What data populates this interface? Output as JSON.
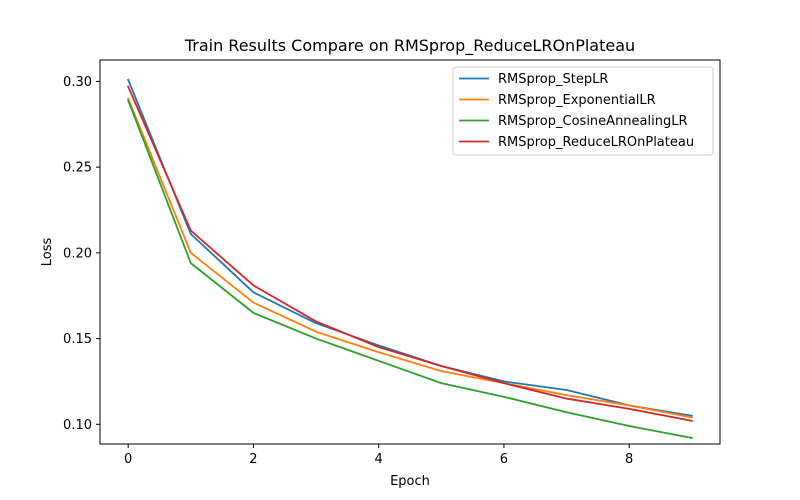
{
  "chart_data": {
    "type": "line",
    "title": "Train Results Compare on RMSprop_ReduceLROnPlateau",
    "xlabel": "Epoch",
    "ylabel": "Loss",
    "x": [
      0,
      1,
      2,
      3,
      4,
      5,
      6,
      7,
      8,
      9
    ],
    "xlim": [
      -0.45,
      9.45
    ],
    "ylim": [
      0.0885,
      0.3125
    ],
    "xticks": [
      0,
      2,
      4,
      6,
      8
    ],
    "xtick_labels": [
      "0",
      "2",
      "4",
      "6",
      "8"
    ],
    "yticks": [
      0.1,
      0.15,
      0.2,
      0.25,
      0.3
    ],
    "ytick_labels": [
      "0.10",
      "0.15",
      "0.20",
      "0.25",
      "0.30"
    ],
    "grid": false,
    "legend_position": "top-right",
    "series": [
      {
        "name": "RMSprop_StepLR",
        "color": "#1f77b4",
        "values": [
          0.301,
          0.211,
          0.177,
          0.159,
          0.146,
          0.134,
          0.125,
          0.12,
          0.111,
          0.105
        ]
      },
      {
        "name": "RMSprop_ExponentialLR",
        "color": "#ff7f0e",
        "values": [
          0.29,
          0.2,
          0.171,
          0.154,
          0.142,
          0.131,
          0.124,
          0.117,
          0.111,
          0.104
        ]
      },
      {
        "name": "RMSprop_CosineAnnealingLR",
        "color": "#2ca02c",
        "values": [
          0.289,
          0.194,
          0.165,
          0.15,
          0.137,
          0.124,
          0.116,
          0.107,
          0.099,
          0.092
        ]
      },
      {
        "name": "RMSprop_ReduceLROnPlateau",
        "color": "#d62728",
        "values": [
          0.297,
          0.213,
          0.181,
          0.16,
          0.145,
          0.134,
          0.124,
          0.115,
          0.109,
          0.102
        ]
      }
    ]
  }
}
